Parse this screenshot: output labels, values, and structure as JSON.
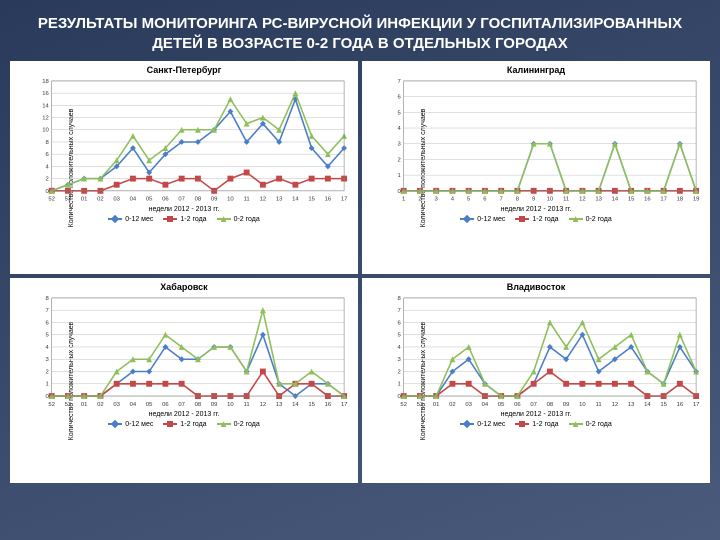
{
  "title": "РЕЗУЛЬТАТЫ МОНИТОРИНГА РС-ВИРУСНОЙ ИНФЕКЦИИ У ГОСПИТАЛИЗИРОВАННЫХ ДЕТЕЙ В ВОЗРАСТЕ 0-2 ГОДА В ОТДЕЛЬНЫХ ГОРОДАХ",
  "ylabel": "Количество положительных случаев",
  "xlabel": "недели 2012 - 2013 гг.",
  "series_meta": [
    {
      "label": "0-12 мес",
      "color": "#4a7ec8",
      "marker": "diamond"
    },
    {
      "label": "1-2 года",
      "color": "#c44848",
      "marker": "square"
    },
    {
      "label": "0-2 года",
      "color": "#8fbf5a",
      "marker": "triangle"
    }
  ],
  "style": {
    "bg": "#ffffff",
    "grid_color": "#c0c0c0",
    "axis_color": "#808080",
    "tick_font": 6,
    "line_width": 1.6,
    "marker_size": 4
  },
  "charts": [
    {
      "title": "Санкт-Петербург",
      "ylim": [
        0,
        18
      ],
      "ytick_step": 2,
      "categories": [
        "52",
        "53",
        "01",
        "02",
        "03",
        "04",
        "05",
        "06",
        "07",
        "08",
        "09",
        "10",
        "11",
        "12",
        "13",
        "14",
        "15",
        "16",
        "17"
      ],
      "series": [
        [
          0,
          1,
          2,
          2,
          4,
          7,
          3,
          6,
          8,
          8,
          10,
          13,
          8,
          11,
          8,
          15,
          7,
          4,
          7
        ],
        [
          0,
          0,
          0,
          0,
          1,
          2,
          2,
          1,
          2,
          2,
          0,
          2,
          3,
          1,
          2,
          1,
          2,
          2,
          2
        ],
        [
          0,
          1,
          2,
          2,
          5,
          9,
          5,
          7,
          10,
          10,
          10,
          15,
          11,
          12,
          10,
          16,
          9,
          6,
          9
        ]
      ]
    },
    {
      "title": "Калининград",
      "ylim": [
        0,
        7
      ],
      "ytick_step": 1,
      "categories": [
        "1",
        "2",
        "3",
        "4",
        "5",
        "6",
        "7",
        "8",
        "9",
        "10",
        "11",
        "12",
        "13",
        "14",
        "15",
        "16",
        "17",
        "18",
        "19"
      ],
      "series": [
        [
          0,
          0,
          0,
          0,
          0,
          0,
          0,
          0,
          3,
          3,
          0,
          0,
          0,
          3,
          0,
          0,
          0,
          3,
          0
        ],
        [
          0,
          0,
          0,
          0,
          0,
          0,
          0,
          0,
          0,
          0,
          0,
          0,
          0,
          0,
          0,
          0,
          0,
          0,
          0
        ],
        [
          0,
          0,
          0,
          0,
          0,
          0,
          0,
          0,
          3,
          3,
          0,
          0,
          0,
          3,
          0,
          0,
          0,
          3,
          0
        ]
      ]
    },
    {
      "title": "Хабаровск",
      "ylim": [
        0,
        8
      ],
      "ytick_step": 1,
      "categories": [
        "52",
        "53",
        "01",
        "02",
        "03",
        "04",
        "05",
        "06",
        "07",
        "08",
        "09",
        "10",
        "11",
        "12",
        "13",
        "14",
        "15",
        "16",
        "17"
      ],
      "series": [
        [
          0,
          0,
          0,
          0,
          1,
          2,
          2,
          4,
          3,
          3,
          4,
          4,
          2,
          5,
          1,
          0,
          1,
          1,
          0
        ],
        [
          0,
          0,
          0,
          0,
          1,
          1,
          1,
          1,
          1,
          0,
          0,
          0,
          0,
          2,
          0,
          1,
          1,
          0,
          0
        ],
        [
          0,
          0,
          0,
          0,
          2,
          3,
          3,
          5,
          4,
          3,
          4,
          4,
          2,
          7,
          1,
          1,
          2,
          1,
          0
        ]
      ]
    },
    {
      "title": "Владивосток",
      "ylim": [
        0,
        8
      ],
      "ytick_step": 1,
      "categories": [
        "52",
        "53",
        "01",
        "02",
        "03",
        "04",
        "05",
        "06",
        "07",
        "08",
        "09",
        "10",
        "11",
        "12",
        "13",
        "14",
        "15",
        "16",
        "17"
      ],
      "series": [
        [
          0,
          0,
          0,
          2,
          3,
          1,
          0,
          0,
          1,
          4,
          3,
          5,
          2,
          3,
          4,
          2,
          1,
          4,
          2
        ],
        [
          0,
          0,
          0,
          1,
          1,
          0,
          0,
          0,
          1,
          2,
          1,
          1,
          1,
          1,
          1,
          0,
          0,
          1,
          0
        ],
        [
          0,
          0,
          0,
          3,
          4,
          1,
          0,
          0,
          2,
          6,
          4,
          6,
          3,
          4,
          5,
          2,
          1,
          5,
          2
        ]
      ]
    }
  ]
}
